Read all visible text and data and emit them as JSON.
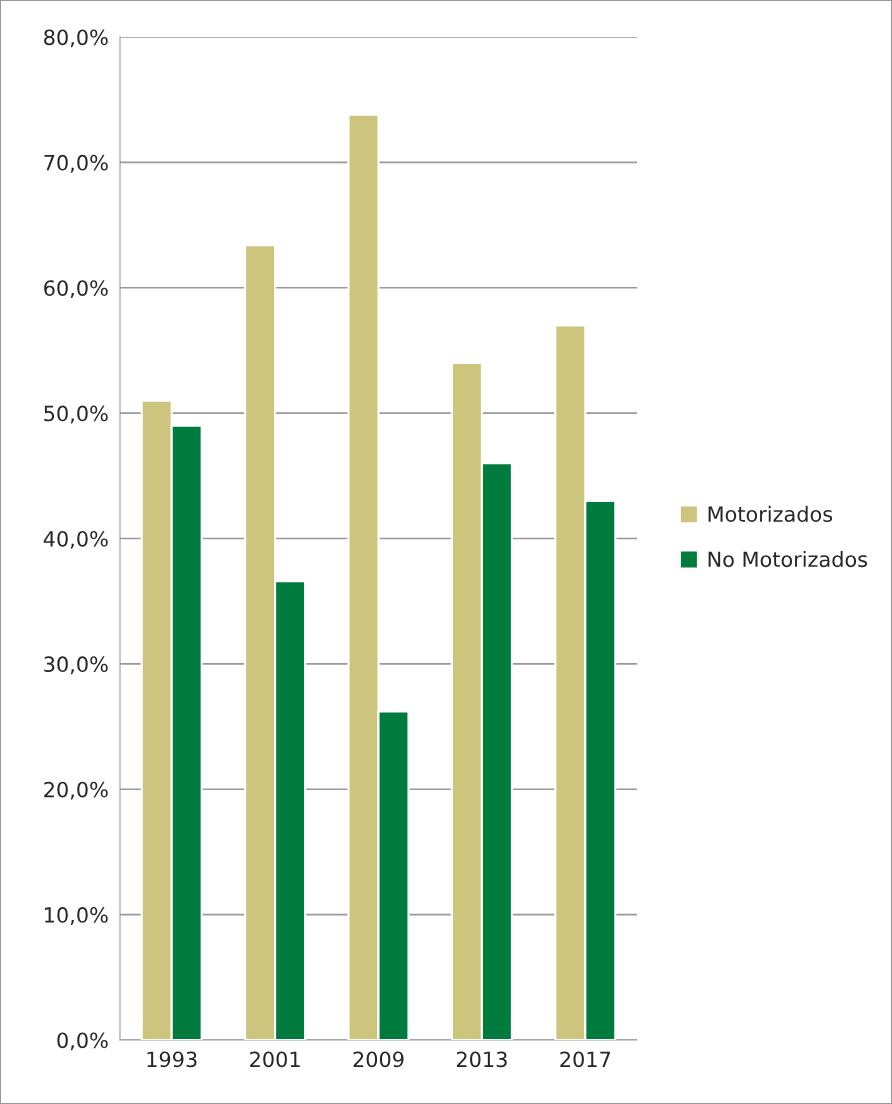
{
  "chart_data": {
    "type": "bar",
    "categories": [
      "1993",
      "2001",
      "2009",
      "2013",
      "2017"
    ],
    "series": [
      {
        "name": "Motorizados",
        "color": "#cdc47d",
        "values": [
          51.0,
          63.4,
          73.8,
          54.0,
          57.0
        ]
      },
      {
        "name": "No Motorizados",
        "color": "#007b3e",
        "values": [
          49.0,
          36.6,
          26.2,
          46.0,
          43.0
        ]
      }
    ],
    "ylim": [
      0,
      80
    ],
    "yticks": [
      {
        "value": 0,
        "label": "0,0%"
      },
      {
        "value": 10,
        "label": "10,0%"
      },
      {
        "value": 20,
        "label": "20,0%"
      },
      {
        "value": 30,
        "label": "30,0%"
      },
      {
        "value": 40,
        "label": "40,0%"
      },
      {
        "value": 50,
        "label": "50,0%"
      },
      {
        "value": 60,
        "label": "60,0%"
      },
      {
        "value": 70,
        "label": "70,0%"
      },
      {
        "value": 80,
        "label": "80,0%"
      }
    ],
    "grid": "y",
    "legend": "right"
  }
}
